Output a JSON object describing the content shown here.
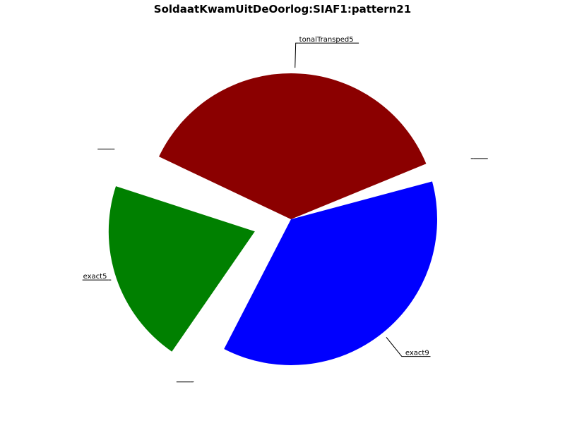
{
  "chart_data": {
    "type": "pie",
    "title": "SoldaatKwamUitDeOorlog:SIAF1:pattern21",
    "slices": [
      {
        "label": "",
        "value": 0.5,
        "color": "#ffffff",
        "explode": true
      },
      {
        "label": "tonalTransped5",
        "value": 9,
        "color": "#8b0000",
        "explode": false
      },
      {
        "label": "",
        "value": 0.5,
        "color": "#ffffff",
        "explode": true
      },
      {
        "label": "exact5",
        "value": 5,
        "color": "#008000",
        "explode": true
      },
      {
        "label": "",
        "value": 0.5,
        "color": "#ffffff",
        "explode": true
      },
      {
        "label": "exact9",
        "value": 9,
        "color": "#0000ff",
        "explode": false
      }
    ],
    "start_angle_deg": 15,
    "direction": "counterclockwise",
    "labels_underlined": true
  }
}
